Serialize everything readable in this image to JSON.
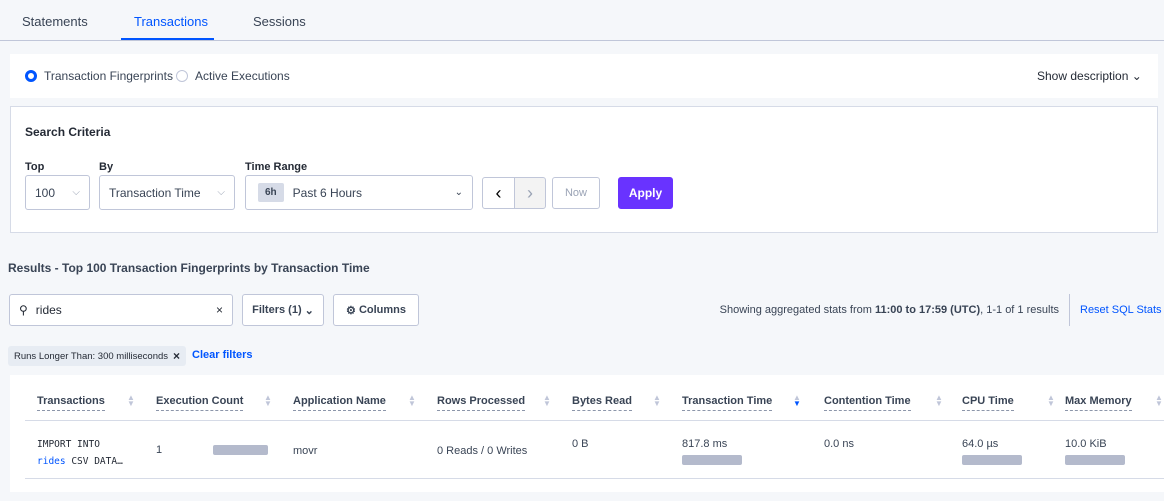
{
  "tabs": [
    {
      "label": "Statements"
    },
    {
      "label": "Transactions",
      "active": true
    },
    {
      "label": "Sessions"
    }
  ],
  "view_toggle": {
    "options": [
      "Transaction Fingerprints",
      "Active Executions"
    ],
    "selected": "Transaction Fingerprints",
    "show_description": "Show description"
  },
  "search_criteria": {
    "title": "Search Criteria",
    "top_label": "Top",
    "top_value": "100",
    "by_label": "By",
    "by_value": "Transaction Time",
    "time_label": "Time Range",
    "time_badge": "6h",
    "time_value": "Past 6 Hours",
    "now_label": "Now",
    "apply_label": "Apply"
  },
  "results": {
    "title": "Results - Top 100 Transaction Fingerprints by Transaction Time",
    "search_value": "rides",
    "filters_label": "Filters (1)",
    "columns_label": "Columns",
    "summary_prefix": "Showing aggregated stats from ",
    "summary_range": "11:00 to 17:59 (UTC)",
    "summary_suffix": ", 1-1 of 1 results",
    "reset_label": "Reset SQL Stats",
    "chip": "Runs Longer Than: 300 milliseconds",
    "clear_filters": "Clear filters"
  },
  "table": {
    "columns": [
      "Transactions",
      "Execution Count",
      "Application Name",
      "Rows Processed",
      "Bytes Read",
      "Transaction Time",
      "Contention Time",
      "CPU Time",
      "Max Memory"
    ],
    "sorted_column": "Transaction Time",
    "rows": [
      {
        "txn_line1": "IMPORT INTO",
        "txn_highlight": "rides",
        "txn_rest": " CSV DATA…",
        "execution_count": "1",
        "application": "movr",
        "rows_processed": "0 Reads / 0 Writes",
        "bytes_read": "0 B",
        "transaction_time": "817.8 ms",
        "contention_time": "0.0 ns",
        "cpu_time": "64.0 µs",
        "max_memory": "10.0 KiB"
      }
    ]
  },
  "colors": {
    "accent": "#0055ff",
    "apply": "#6933ff"
  }
}
